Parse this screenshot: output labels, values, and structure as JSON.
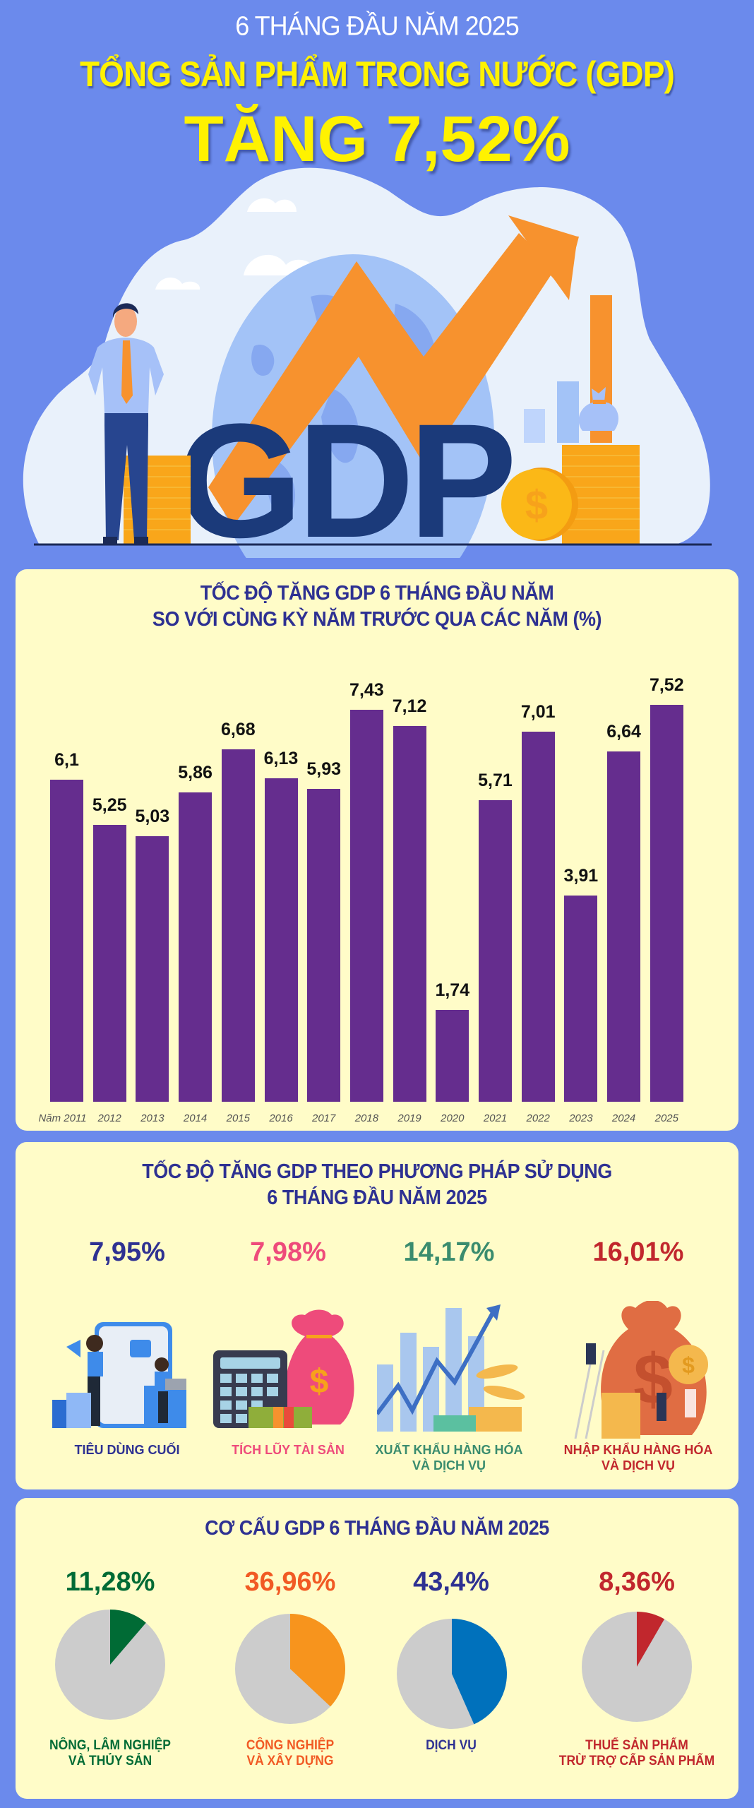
{
  "header": {
    "subtitle": "6 THÁNG ĐẦU NĂM 2025",
    "title": "TỔNG SẢN PHẨM TRONG NƯỚC (GDP)",
    "headline": "TĂNG 7,52%"
  },
  "hero": {
    "gdp_text": "GDP",
    "colors": {
      "arrow": "#F7922E",
      "gdp_letters": "#1B3A7A",
      "globe": "#A3C3F7",
      "coins": "#F9A61A",
      "cloud": "#E9F1FB"
    }
  },
  "colors": {
    "background": "#6B8AEC",
    "card": "#FFFCC8",
    "bar": "#652D8E",
    "title": "#2E3192",
    "pie_rest": "#CCCCCC"
  },
  "growth_chart": {
    "title_line1": "TỐC ĐỘ TĂNG GDP 6 THÁNG ĐẦU NĂM",
    "title_line2": "SO VỚI CÙNG KỲ NĂM TRƯỚC QUA CÁC NĂM (%)",
    "year_prefix": "Năm",
    "bars": [
      {
        "year": "Năm 2011",
        "value": 6.1,
        "label": "6,1"
      },
      {
        "year": "2012",
        "value": 5.25,
        "label": "5,25"
      },
      {
        "year": "2013",
        "value": 5.03,
        "label": "5,03"
      },
      {
        "year": "2014",
        "value": 5.86,
        "label": "5,86"
      },
      {
        "year": "2015",
        "value": 6.68,
        "label": "6,68"
      },
      {
        "year": "2016",
        "value": 6.13,
        "label": "6,13"
      },
      {
        "year": "2017",
        "value": 5.93,
        "label": "5,93"
      },
      {
        "year": "2018",
        "value": 7.43,
        "label": "7,43"
      },
      {
        "year": "2019",
        "value": 7.12,
        "label": "7,12"
      },
      {
        "year": "2020",
        "value": 1.74,
        "label": "1,74"
      },
      {
        "year": "2021",
        "value": 5.71,
        "label": "5,71"
      },
      {
        "year": "2022",
        "value": 7.01,
        "label": "7,01"
      },
      {
        "year": "2023",
        "value": 3.91,
        "label": "3,91"
      },
      {
        "year": "2024",
        "value": 6.64,
        "label": "6,64"
      },
      {
        "year": "2025",
        "value": 7.52,
        "label": "7,52"
      }
    ]
  },
  "usage": {
    "title_line1": "TỐC ĐỘ TĂNG GDP THEO PHƯƠNG PHÁP SỬ DỤNG",
    "title_line2": "6 THÁNG ĐẦU NĂM 2025",
    "items": [
      {
        "value": "7,95%",
        "label_line1": "TIÊU DÙNG CUỐI",
        "label_line2": "",
        "color": "#2E3192",
        "icon": "shopping-people-icon"
      },
      {
        "value": "7,98%",
        "label_line1": "TÍCH LŨY TÀI SẢN",
        "label_line2": "",
        "color": "#EE4B7B",
        "icon": "calculator-money-bag-icon"
      },
      {
        "value": "14,17%",
        "label_line1": "XUẤT KHẨU HÀNG HÓA",
        "label_line2": "VÀ DỊCH VỤ",
        "color": "#3A8C6E",
        "icon": "rising-chart-coins-icon"
      },
      {
        "value": "16,01%",
        "label_line1": "NHẬP KHẨU HÀNG HÓA",
        "label_line2": "VÀ DỊCH VỤ",
        "color": "#C1272D",
        "icon": "money-bag-ladder-icon"
      }
    ]
  },
  "structure": {
    "title": "CƠ CẤU GDP 6 THÁNG ĐẦU NĂM 2025",
    "items": [
      {
        "value": "11,28%",
        "percent": 11.28,
        "label_line1": "NÔNG, LÂM NGHIỆP",
        "label_line2": "VÀ THỦY SẢN",
        "color": "#006B35",
        "value_color": "#006B35"
      },
      {
        "value": "36,96%",
        "percent": 36.96,
        "label_line1": "CÔNG NGHIỆP",
        "label_line2": "VÀ XÂY DỰNG",
        "color": "#F7941D",
        "value_color": "#F15A24"
      },
      {
        "value": "43,4%",
        "percent": 43.4,
        "label_line1": "DỊCH VỤ",
        "label_line2": "",
        "color": "#0071BC",
        "value_color": "#2E3192"
      },
      {
        "value": "8,36%",
        "percent": 8.36,
        "label_line1": "THUẾ SẢN PHẨM",
        "label_line2": "TRỪ TRỢ CẤP SẢN PHẨM",
        "color": "#C1272D",
        "value_color": "#C1272D"
      }
    ]
  },
  "chart_data": [
    {
      "type": "bar",
      "title": "TỐC ĐỘ TĂNG GDP 6 THÁNG ĐẦU NĂM SO VỚI CÙNG KỲ NĂM TRƯỚC QUA CÁC NĂM (%)",
      "categories": [
        "2011",
        "2012",
        "2013",
        "2014",
        "2015",
        "2016",
        "2017",
        "2018",
        "2019",
        "2020",
        "2021",
        "2022",
        "2023",
        "2024",
        "2025"
      ],
      "values": [
        6.1,
        5.25,
        5.03,
        5.86,
        6.68,
        6.13,
        5.93,
        7.43,
        7.12,
        1.74,
        5.71,
        7.01,
        3.91,
        6.64,
        7.52
      ],
      "xlabel": "Năm",
      "ylabel": "%",
      "grid": false,
      "data_labels": true
    },
    {
      "type": "table",
      "title": "TỐC ĐỘ TĂNG GDP THEO PHƯƠNG PHÁP SỬ DỤNG 6 THÁNG ĐẦU NĂM 2025",
      "categories": [
        "Tiêu dùng cuối",
        "Tích lũy tài sản",
        "Xuất khẩu hàng hóa và dịch vụ",
        "Nhập khẩu hàng hóa và dịch vụ"
      ],
      "values": [
        7.95,
        7.98,
        14.17,
        16.01
      ],
      "unit": "%"
    },
    {
      "type": "pie",
      "title": "CƠ CẤU GDP 6 THÁNG ĐẦU NĂM 2025",
      "categories": [
        "Nông, lâm nghiệp và thủy sản",
        "Công nghiệp và xây dựng",
        "Dịch vụ",
        "Thuế sản phẩm trừ trợ cấp sản phẩm"
      ],
      "values": [
        11.28,
        36.96,
        43.4,
        8.36
      ],
      "unit": "%"
    }
  ]
}
